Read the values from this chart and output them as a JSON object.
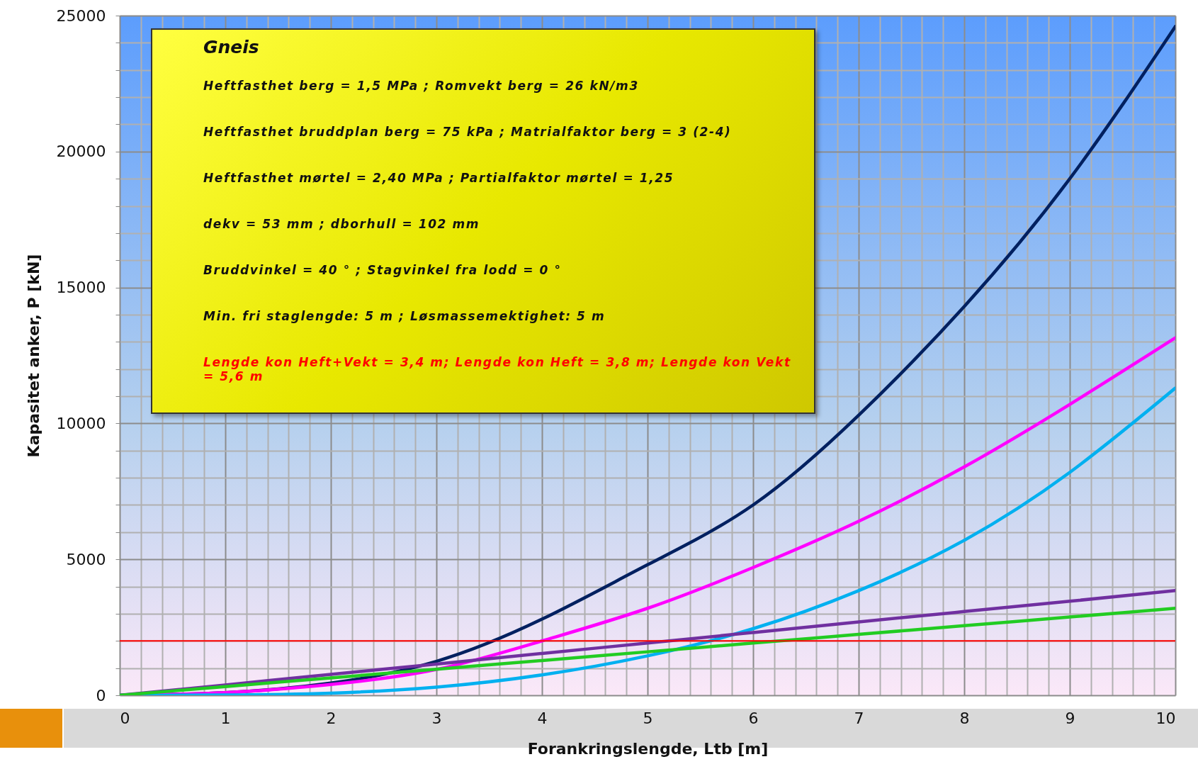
{
  "chart_data": {
    "type": "line",
    "xlabel": "Forankringslengde, Ltb [m]",
    "ylabel": "Kapasitet anker, P [kN]",
    "x": [
      0,
      1,
      2,
      3,
      4,
      5,
      6,
      7,
      8,
      9,
      10
    ],
    "series": [
      {
        "color": "#002060",
        "values": [
          0,
          100,
          450,
          1250,
          2800,
          4800,
          7000,
          10300,
          14300,
          19000,
          24600
        ]
      },
      {
        "color": "#ff00ff",
        "values": [
          0,
          100,
          400,
          950,
          2000,
          3200,
          4700,
          6400,
          8400,
          10700,
          13150
        ]
      },
      {
        "color": "#00b0f0",
        "values": [
          0,
          10,
          80,
          300,
          750,
          1450,
          2450,
          3850,
          5700,
          8200,
          11300
        ]
      },
      {
        "color": "#7030a0",
        "values": [
          0,
          380,
          770,
          1150,
          1540,
          1920,
          2310,
          2700,
          3080,
          3460,
          3850
        ]
      },
      {
        "color": "#22cc22",
        "values": [
          0,
          320,
          640,
          960,
          1280,
          1600,
          1920,
          2240,
          2560,
          2880,
          3200
        ]
      }
    ],
    "xlim": [
      0,
      10
    ],
    "ylim": [
      0,
      25000
    ],
    "xticks": [
      0,
      {
        "value": 0.2,
        "label": null
      },
      {
        "value": 0.4,
        "label": null
      },
      {
        "value": 0.6,
        "label": null
      },
      {
        "value": 0.8,
        "label": null
      },
      1,
      {
        "value": 1.2,
        "label": null
      },
      {
        "value": 1.4,
        "label": null
      },
      {
        "value": 1.6,
        "label": null
      },
      {
        "value": 1.8,
        "label": null
      },
      2,
      {
        "value": 2.2,
        "label": null
      },
      {
        "value": 2.4,
        "label": null
      },
      {
        "value": 2.6,
        "label": null
      },
      {
        "value": 2.8,
        "label": null
      },
      3,
      {
        "value": 3.2,
        "label": null
      },
      {
        "value": 3.4,
        "label": null
      },
      {
        "value": 3.6,
        "label": null
      },
      {
        "value": 3.8,
        "label": null
      },
      4,
      {
        "value": 4.2,
        "label": null
      },
      {
        "value": 4.4,
        "label": null
      },
      {
        "value": 4.6,
        "label": null
      },
      {
        "value": 4.8,
        "label": null
      },
      5,
      {
        "value": 5.2,
        "label": null
      },
      {
        "value": 5.4,
        "label": null
      },
      {
        "value": 5.6,
        "label": null
      },
      {
        "value": 5.8,
        "label": null
      },
      6,
      {
        "value": 6.2,
        "label": null
      },
      {
        "value": 6.4,
        "label": null
      },
      {
        "value": 6.6,
        "label": null
      },
      {
        "value": 6.8,
        "label": null
      },
      7,
      {
        "value": 7.2,
        "label": null
      },
      {
        "value": 7.4,
        "label": null
      },
      {
        "value": 7.6,
        "label": null
      },
      {
        "value": 7.8,
        "label": null
      },
      8,
      {
        "value": 8.2,
        "label": null
      },
      {
        "value": 8.4,
        "label": null
      },
      {
        "value": 8.6,
        "label": null
      },
      {
        "value": 8.8,
        "label": null
      },
      9,
      {
        "value": 9.2,
        "label": null
      },
      {
        "value": 9.4,
        "label": null
      },
      {
        "value": 9.6,
        "label": null
      },
      {
        "value": 9.8,
        "label": null
      },
      10
    ],
    "yticks": [
      0,
      {
        "value": 1000,
        "label": null
      },
      {
        "value": 2000,
        "label": null
      },
      {
        "value": 3000,
        "label": null
      },
      {
        "value": 4000,
        "label": null
      },
      5000,
      {
        "value": 6000,
        "label": null
      },
      {
        "value": 7000,
        "label": null
      },
      {
        "value": 8000,
        "label": null
      },
      {
        "value": 9000,
        "label": null
      },
      10000,
      {
        "value": 11000,
        "label": null
      },
      {
        "value": 12000,
        "label": null
      },
      {
        "value": 13000,
        "label": null
      },
      {
        "value": 14000,
        "label": null
      },
      15000,
      {
        "value": 16000,
        "label": null
      },
      {
        "value": 17000,
        "label": null
      },
      {
        "value": 18000,
        "label": null
      },
      {
        "value": 19000,
        "label": null
      },
      20000,
      {
        "value": 21000,
        "label": null
      },
      {
        "value": 22000,
        "label": null
      },
      {
        "value": 23000,
        "label": null
      },
      {
        "value": 24000,
        "label": null
      },
      25000
    ],
    "grid": true,
    "ref_lines": [
      {
        "axis": "y",
        "value": 2000,
        "color": "#ff0000"
      }
    ],
    "annotations": [
      "Gneis",
      "Heftfasthet berg = 1,5 MPa ; Romvekt berg = 26 kN/m3",
      "Heftfasthet bruddplan berg = 75 kPa ; Matrialfaktor berg = 3 (2-4)",
      "Heftfasthet mørtel = 2,40 MPa ; Partialfaktor mørtel = 1,25",
      "dekv = 53 mm ; dborhull = 102 mm",
      "Bruddvinkel = 40 ° ; Stagvinkel fra lodd = 0 °",
      "Min. fri staglengde: 5 m ; Løsmassemektighet: 5 m",
      "Lengde kon Heft+Vekt = 3,4 m; Lengde kon Heft = 3,8 m; Lengde kon Vekt = 5,6 m"
    ]
  }
}
